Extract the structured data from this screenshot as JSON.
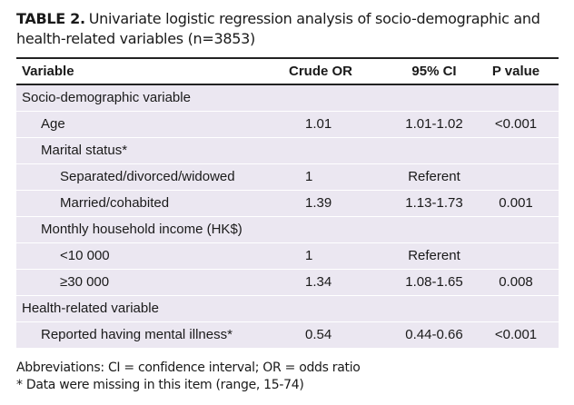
{
  "title": {
    "label": "TABLE 2.",
    "text": "Univariate logistic regression analysis of socio-demographic and health-related variables (n=3853)"
  },
  "table": {
    "headers": [
      "Variable",
      "Crude OR",
      "95% CI",
      "P value"
    ],
    "rows": [
      {
        "label": "Socio-demographic variable"
      },
      {
        "label": "Age",
        "crude_or": "1.01",
        "ci": "1.01-1.02",
        "p": "<0.001"
      },
      {
        "label": "Marital status*"
      },
      {
        "label": "Separated/divorced/widowed",
        "crude_or": "1",
        "ci": "Referent"
      },
      {
        "label": "Married/cohabited",
        "crude_or": "1.39",
        "ci": "1.13-1.73",
        "p": "0.001"
      },
      {
        "label": "Monthly household income (HK$)"
      },
      {
        "label": "<10 000",
        "crude_or": "1",
        "ci": "Referent"
      },
      {
        "label": "≥30 000",
        "crude_or": "1.34",
        "ci": "1.08-1.65",
        "p": "0.008"
      },
      {
        "label": "Health-related variable"
      },
      {
        "label": "Reported having mental illness*",
        "crude_or": "0.54",
        "ci": "0.44-0.66",
        "p": "<0.001"
      }
    ]
  },
  "footnotes": [
    "Abbreviations: CI = confidence interval; OR = odds ratio",
    "*  Data were missing in this item (range, 15-74)"
  ]
}
